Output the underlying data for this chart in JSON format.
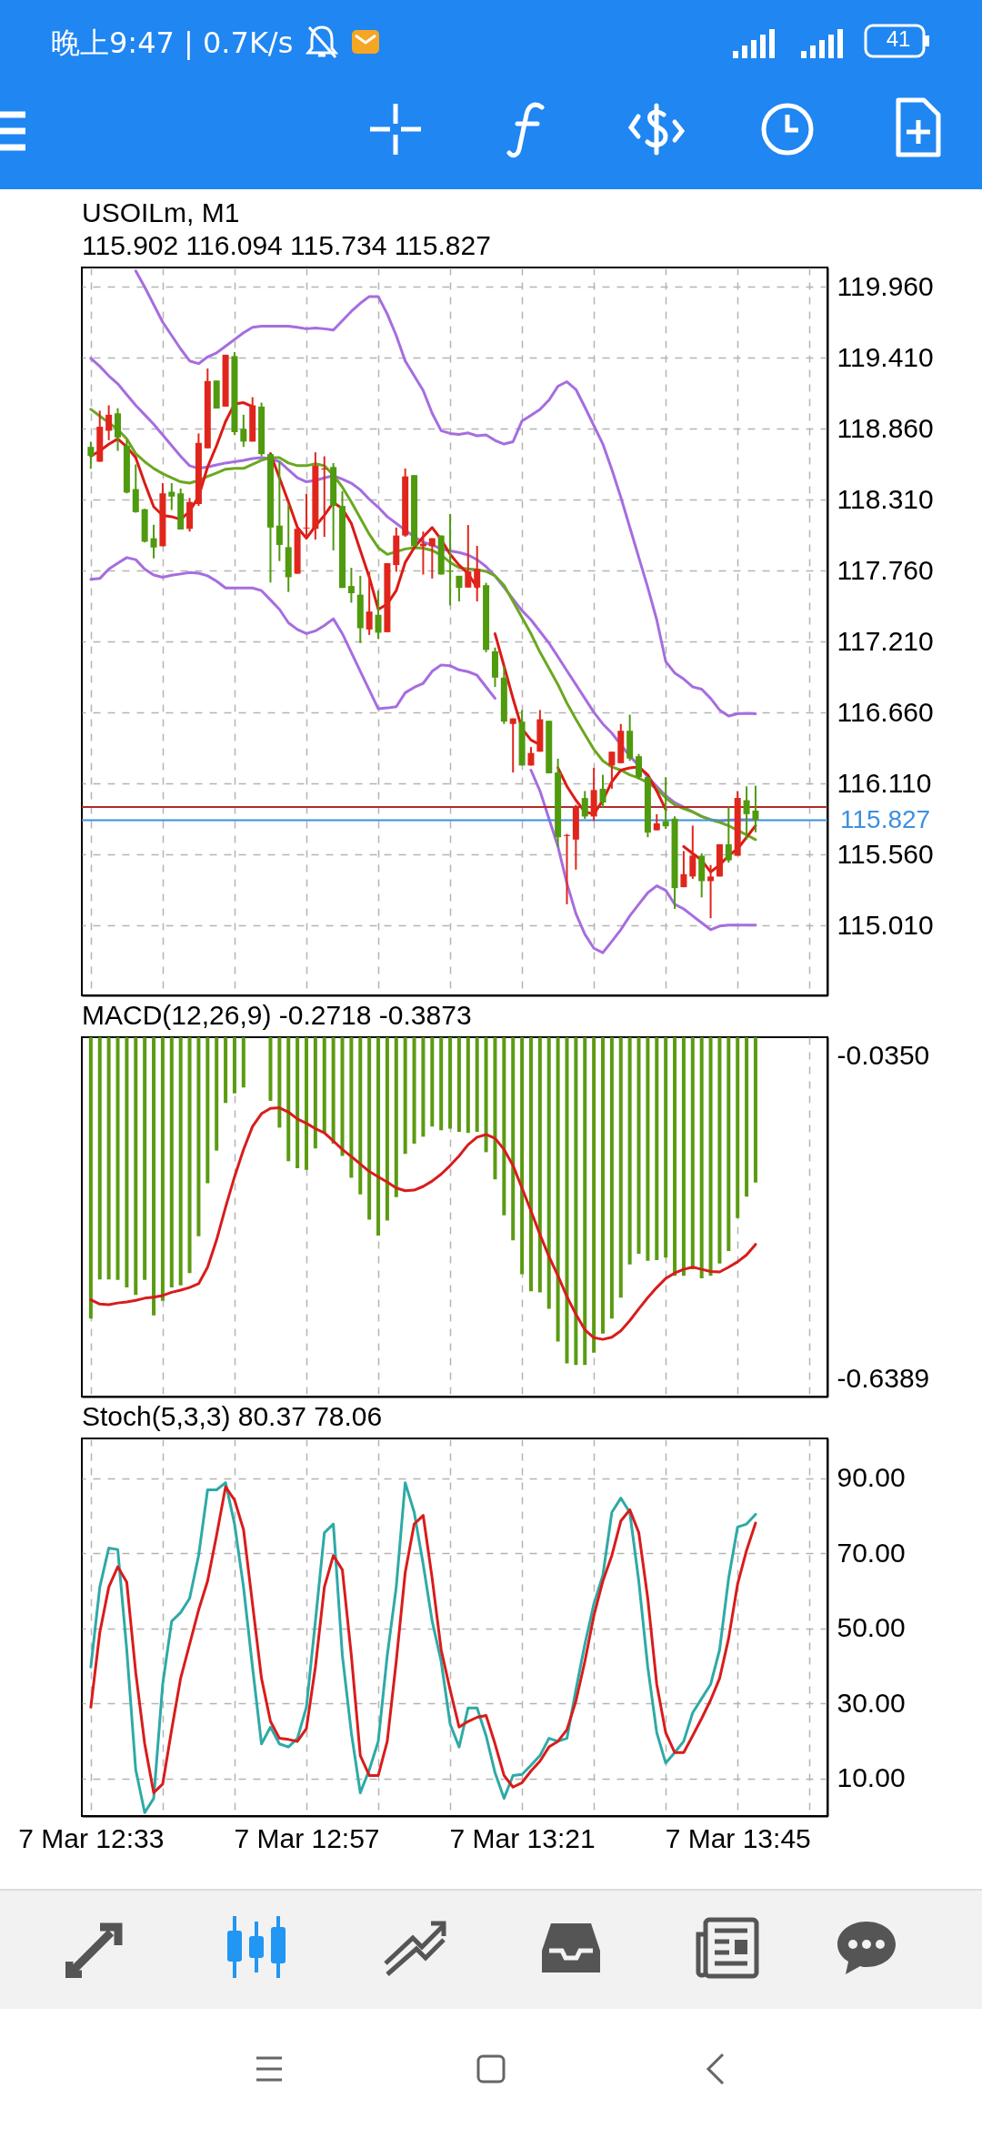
{
  "chart_data": [
    {
      "type": "candlestick",
      "title": "USOILm, M1",
      "subtitle": "115.902 116.094 115.734 115.827",
      "x": [
        "--03-07T12:33",
        "--03-07T12:34",
        "--03-07T12:35",
        "--03-07T12:36",
        "--03-07T12:37",
        "--03-07T12:38",
        "--03-07T12:39",
        "--03-07T12:40",
        "--03-07T12:41",
        "--03-07T12:42",
        "--03-07T12:43",
        "--03-07T12:44",
        "--03-07T12:45",
        "--03-07T12:46",
        "--03-07T12:47",
        "--03-07T12:48",
        "--03-07T12:49",
        "--03-07T12:50",
        "--03-07T12:51",
        "--03-07T12:52",
        "--03-07T12:53",
        "--03-07T12:54",
        "--03-07T12:55",
        "--03-07T12:56",
        "--03-07T12:57",
        "--03-07T12:58",
        "--03-07T12:59",
        "--03-07T13:00",
        "--03-07T13:01",
        "--03-07T13:02",
        "--03-07T13:03",
        "--03-07T13:04",
        "--03-07T13:05",
        "--03-07T13:06",
        "--03-07T13:07",
        "--03-07T13:08",
        "--03-07T13:09",
        "--03-07T13:10",
        "--03-07T13:11",
        "--03-07T13:12",
        "--03-07T13:13",
        "--03-07T13:14",
        "--03-07T13:15",
        "--03-07T13:16",
        "--03-07T13:17",
        "--03-07T13:18",
        "--03-07T13:19",
        "--03-07T13:20",
        "--03-07T13:21",
        "--03-07T13:22",
        "--03-07T13:23",
        "--03-07T13:24",
        "--03-07T13:25",
        "--03-07T13:26",
        "--03-07T13:27",
        "--03-07T13:28",
        "--03-07T13:29",
        "--03-07T13:30",
        "--03-07T13:31",
        "--03-07T13:32",
        "--03-07T13:33",
        "--03-07T13:34",
        "--03-07T13:35",
        "--03-07T13:36",
        "--03-07T13:37",
        "--03-07T13:38",
        "--03-07T13:39",
        "--03-07T13:40",
        "--03-07T13:41",
        "--03-07T13:42",
        "--03-07T13:43",
        "--03-07T13:44",
        "--03-07T13:45",
        "--03-07T13:46",
        "--03-07T13:47"
      ],
      "ohlc": [
        [
          118.72,
          118.76,
          118.55,
          118.65
        ],
        [
          118.605,
          119.0,
          118.605,
          118.876
        ],
        [
          118.845,
          119.042,
          118.772,
          118.969
        ],
        [
          118.98,
          119.02,
          118.689,
          118.793
        ],
        [
          118.73,
          118.772,
          118.36,
          118.366
        ],
        [
          118.393,
          118.584,
          118.21,
          118.214
        ],
        [
          118.237,
          118.24,
          117.98,
          117.985
        ],
        [
          118.012,
          118.116,
          117.856,
          117.94
        ],
        [
          117.95,
          118.439,
          117.95,
          118.36
        ],
        [
          118.372,
          118.439,
          118.231,
          118.335
        ],
        [
          118.36,
          118.397,
          118.08,
          118.08
        ],
        [
          118.085,
          118.324,
          118.064,
          118.293
        ],
        [
          118.277,
          118.824,
          118.262,
          118.751
        ],
        [
          118.709,
          119.327,
          118.709,
          119.23
        ],
        [
          119.234,
          119.234,
          119.017,
          119.017
        ],
        [
          119.032,
          119.434,
          119.032,
          119.434
        ],
        [
          119.423,
          119.454,
          118.813,
          118.834
        ],
        [
          118.859,
          118.969,
          118.72,
          118.761
        ],
        [
          118.761,
          119.105,
          118.761,
          119.042
        ],
        [
          119.032,
          119.063,
          118.647,
          118.664
        ],
        [
          118.664,
          118.664,
          117.669,
          118.095
        ],
        [
          118.11,
          118.605,
          117.835,
          117.96
        ],
        [
          117.943,
          118.273,
          117.596,
          117.71
        ],
        [
          117.737,
          118.095,
          117.737,
          118.085
        ],
        [
          118.088,
          118.356,
          118.012,
          118.095
        ],
        [
          118.085,
          118.678,
          118.002,
          118.574
        ],
        [
          118.545,
          118.647,
          118.023,
          118.553
        ],
        [
          118.564,
          118.595,
          117.918,
          118.262
        ],
        [
          118.262,
          118.376,
          117.627,
          117.627
        ],
        [
          117.642,
          117.783,
          117.513,
          117.586
        ],
        [
          117.575,
          117.721,
          117.2,
          117.315
        ],
        [
          117.305,
          117.752,
          117.263,
          117.444
        ],
        [
          117.419,
          117.606,
          117.232,
          117.28
        ],
        [
          117.284,
          117.819,
          117.284,
          117.819
        ],
        [
          117.804,
          118.095,
          117.752,
          118.033
        ],
        [
          118.033,
          118.553,
          118.023,
          118.491
        ],
        [
          118.501,
          118.501,
          117.95,
          117.95
        ],
        [
          117.95,
          118.064,
          117.731,
          117.97
        ],
        [
          117.95,
          118.012,
          117.7,
          118.012
        ],
        [
          118.033,
          118.033,
          117.731,
          117.731
        ],
        [
          117.762,
          118.2,
          117.492,
          117.752
        ],
        [
          117.721,
          117.721,
          117.523,
          117.627
        ],
        [
          117.63,
          118.114,
          117.63,
          117.756
        ],
        [
          117.63,
          117.953,
          117.523,
          117.774
        ],
        [
          117.648,
          117.666,
          117.129,
          117.147
        ],
        [
          117.136,
          117.165,
          116.86,
          116.932
        ],
        [
          116.932,
          117.021,
          116.573,
          116.591
        ],
        [
          116.573,
          116.616,
          116.197,
          116.616
        ],
        [
          116.591,
          116.681,
          116.251,
          116.251
        ],
        [
          116.251,
          116.394,
          116.251,
          116.348
        ],
        [
          116.358,
          116.681,
          116.358,
          116.609
        ],
        [
          116.598,
          116.598,
          116.19,
          116.19
        ],
        [
          116.197,
          116.304,
          115.623,
          115.695
        ],
        [
          115.705,
          115.72,
          115.176,
          115.713
        ],
        [
          115.677,
          115.946,
          115.444,
          115.928
        ],
        [
          115.999,
          116.053,
          115.838,
          115.856
        ],
        [
          115.856,
          116.233,
          115.821,
          116.061
        ],
        [
          116.071,
          116.179,
          115.928,
          115.964
        ],
        [
          116.251,
          116.358,
          116.071,
          116.358
        ],
        [
          116.269,
          116.573,
          116.269,
          116.52
        ],
        [
          116.52,
          116.645,
          116.287,
          116.305
        ],
        [
          116.323,
          116.341,
          116.143,
          116.161
        ],
        [
          116.161,
          116.161,
          115.695,
          115.731
        ],
        [
          115.749,
          115.874,
          115.749,
          115.803
        ],
        [
          115.82,
          116.16,
          115.76,
          115.78
        ],
        [
          115.839,
          115.857,
          115.14,
          115.301
        ],
        [
          115.308,
          115.588,
          115.308,
          115.409
        ],
        [
          115.391,
          115.785,
          115.373,
          115.552
        ],
        [
          115.552,
          115.57,
          115.229,
          115.355
        ],
        [
          115.355,
          115.48,
          115.068,
          115.391
        ],
        [
          115.391,
          115.641,
          115.391,
          115.641
        ],
        [
          115.641,
          115.928,
          115.498,
          115.516
        ],
        [
          115.552,
          116.053,
          115.552,
          116.0
        ],
        [
          115.982,
          116.089,
          115.677,
          115.874
        ],
        [
          115.902,
          116.094,
          115.734,
          115.827
        ]
      ],
      "colors": [
        "#4f9a0e",
        "#e0261c",
        "#e0261c",
        "#4f9a0e",
        "#4f9a0e",
        "#4f9a0e",
        "#4f9a0e",
        "#4f9a0e",
        "#e0261c",
        "#4f9a0e",
        "#4f9a0e",
        "#e0261c",
        "#e0261c",
        "#e0261c",
        "#4f9a0e",
        "#e0261c",
        "#4f9a0e",
        "#4f9a0e",
        "#e0261c",
        "#4f9a0e",
        "#4f9a0e",
        "#4f9a0e",
        "#4f9a0e",
        "#e0261c",
        "#e0261c",
        "#e0261c",
        "#e0261c",
        "#4f9a0e",
        "#4f9a0e",
        "#4f9a0e",
        "#4f9a0e",
        "#e0261c",
        "#4f9a0e",
        "#e0261c",
        "#e0261c",
        "#e0261c",
        "#4f9a0e",
        "#e0261c",
        "#e0261c",
        "#4f9a0e",
        "#4f9a0e",
        "#4f9a0e",
        "#e0261c",
        "#e0261c",
        "#4f9a0e",
        "#4f9a0e",
        "#4f9a0e",
        "#e0261c",
        "#4f9a0e",
        "#e0261c",
        "#e0261c",
        "#4f9a0e",
        "#4f9a0e",
        "#e0261c",
        "#e0261c",
        "#4f9a0e",
        "#e0261c",
        "#4f9a0e",
        "#e0261c",
        "#e0261c",
        "#4f9a0e",
        "#4f9a0e",
        "#4f9a0e",
        "#e0261c",
        "#4f9a0e",
        "#4f9a0e",
        "#e0261c",
        "#e0261c",
        "#4f9a0e",
        "#e0261c",
        "#e0261c",
        "#4f9a0e",
        "#e0261c",
        "#4f9a0e",
        "#4f9a0e"
      ],
      "series": [
        {
          "type": "line",
          "color": "#a66ddf",
          "values": [
            null,
            null,
            null,
            null,
            null,
            120.083,
            119.958,
            119.823,
            119.687,
            119.583,
            119.479,
            119.386,
            119.365,
            119.417,
            119.448,
            119.5,
            119.552,
            119.604,
            119.646,
            119.656,
            119.656,
            119.656,
            119.656,
            119.646,
            119.635,
            119.642,
            119.635,
            119.625,
            119.698,
            119.77,
            119.833,
            119.885,
            119.885,
            119.75,
            119.583,
            119.386,
            119.271,
            119.157,
            118.98,
            118.845,
            118.824,
            118.817,
            118.828,
            118.806,
            118.813,
            118.77,
            118.742,
            118.76,
            118.921,
            118.964,
            119.01,
            119.082,
            119.19,
            119.225,
            119.165,
            119.028,
            118.885,
            118.742,
            118.545,
            118.33,
            118.097,
            117.864,
            117.631,
            117.38,
            117.057,
            116.968,
            116.921,
            116.86,
            116.842,
            116.771,
            116.681,
            116.634,
            116.652,
            116.656,
            116.652
          ]
        },
        {
          "type": "line",
          "color": "#a66ddf",
          "values": [
            119.406,
            119.344,
            119.271,
            119.209,
            119.125,
            119.042,
            118.969,
            118.896,
            118.813,
            118.73,
            118.647,
            118.574,
            118.553,
            118.564,
            118.58,
            118.595,
            118.605,
            118.616,
            118.63,
            118.636,
            118.63,
            118.605,
            118.543,
            118.48,
            118.449,
            118.46,
            118.48,
            118.497,
            118.47,
            118.439,
            118.387,
            118.314,
            118.252,
            118.179,
            118.127,
            118.075,
            118.023,
            117.981,
            117.96,
            117.929,
            117.914,
            117.902,
            117.882,
            117.846,
            117.792,
            117.72,
            117.631,
            117.541,
            117.451,
            117.38,
            117.29,
            117.2,
            117.093,
            116.985,
            116.878,
            116.771,
            116.663,
            116.573,
            116.502,
            116.412,
            116.323,
            116.251,
            116.161,
            116.09,
            116.018,
            115.964,
            115.928,
            115.892,
            115.856,
            115.831,
            115.82,
            115.828,
            115.831,
            115.831,
            115.831
          ]
        },
        {
          "type": "line",
          "color": "#a66ddf",
          "values": [
            117.694,
            117.7,
            117.773,
            117.818,
            117.862,
            117.846,
            117.773,
            117.727,
            117.71,
            117.725,
            117.735,
            117.746,
            117.741,
            117.721,
            117.679,
            117.627,
            117.627,
            117.627,
            117.627,
            117.606,
            117.534,
            117.461,
            117.357,
            117.305,
            117.273,
            117.294,
            117.336,
            117.388,
            117.273,
            117.127,
            116.981,
            116.836,
            116.69,
            116.697,
            116.707,
            116.815,
            116.857,
            116.888,
            116.981,
            117.03,
            117.024,
            116.992,
            116.978,
            116.95,
            116.86,
            116.771,
            null,
            null,
            null,
            116.215,
            116.054,
            115.839,
            115.624,
            115.337,
            115.104,
            114.943,
            114.835,
            114.8,
            114.889,
            114.979,
            115.086,
            115.176,
            115.265,
            115.319,
            115.283,
            115.176,
            115.14,
            115.086,
            115.032,
            114.979,
            115.007,
            115.014,
            115.014,
            115.014,
            115.014
          ]
        },
        {
          "type": "line",
          "color": "#6aa821",
          "values": [
            119.011,
            118.959,
            118.907,
            118.855,
            118.782,
            118.668,
            118.605,
            118.553,
            118.512,
            118.48,
            118.449,
            118.439,
            118.46,
            118.491,
            118.518,
            118.547,
            118.553,
            118.553,
            118.584,
            118.616,
            118.636,
            118.636,
            118.595,
            118.574,
            118.574,
            118.589,
            118.574,
            118.501,
            118.408,
            118.293,
            118.168,
            118.043,
            117.939,
            117.887,
            117.908,
            117.929,
            117.939,
            117.935,
            117.918,
            117.881,
            117.825,
            117.783,
            117.774,
            117.767,
            117.756,
            117.72,
            117.648,
            117.523,
            117.398,
            117.272,
            117.129,
            117.004,
            116.878,
            116.735,
            116.609,
            116.491,
            116.376,
            116.287,
            116.24,
            116.215,
            116.179,
            116.154,
            116.118,
            116.071,
            116.0,
            115.946,
            115.917,
            115.892,
            115.856,
            115.831,
            115.81,
            115.785,
            115.749,
            115.713,
            115.677
          ]
        },
        {
          "type": "line",
          "color": "#dd1a14",
          "values": [
            118.647,
            118.689,
            118.74,
            118.782,
            118.72,
            118.636,
            118.439,
            118.256,
            118.189,
            118.179,
            118.158,
            118.22,
            118.335,
            118.564,
            118.73,
            118.917,
            119.053,
            119.063,
            119.032,
            null,
            118.668,
            118.48,
            118.293,
            118.095,
            118.012,
            118.106,
            118.189,
            118.289,
            118.241,
            118.127,
            117.918,
            117.71,
            117.461,
            117.502,
            117.606,
            117.825,
            117.939,
            118.023,
            118.095,
            118.002,
            117.887,
            117.804,
            117.738,
            117.631,
            null,
            117.272,
            117.022,
            116.77,
            116.537,
            116.448,
            116.412,
            null,
            116.233,
            116.09,
            115.982,
            115.892,
            115.874,
            115.982,
            116.125,
            116.215,
            116.233,
            116.24,
            116.179,
            116.053,
            115.91,
            null,
            115.623,
            115.57,
            115.516,
            115.426,
            115.48,
            115.552,
            115.605,
            115.695,
            115.785
          ]
        }
      ],
      "xlim": [
        "--03-07T12:32",
        "--03-07T13:55"
      ],
      "xticks": [
        {
          "value": "--03-07T12:33",
          "label": "7 Mar 12:33"
        },
        {
          "value": "--03-07T12:41",
          "label": null
        },
        {
          "value": "--03-07T12:49",
          "label": null
        },
        {
          "value": "--03-07T12:57",
          "label": "7 Mar 12:57"
        },
        {
          "value": "--03-07T13:05",
          "label": null
        },
        {
          "value": "--03-07T13:13",
          "label": null
        },
        {
          "value": "--03-07T13:21",
          "label": "7 Mar 13:21"
        },
        {
          "value": "--03-07T13:29",
          "label": null
        },
        {
          "value": "--03-07T13:37",
          "label": null
        },
        {
          "value": "--03-07T13:45",
          "label": "7 Mar 13:45"
        },
        {
          "value": "--03-07T13:53",
          "label": null
        }
      ],
      "ylim": [
        114.47,
        120.11
      ],
      "yticks": [
        {
          "value": 119.96,
          "label": "119.960"
        },
        {
          "value": 119.41,
          "label": "119.410"
        },
        {
          "value": 118.86,
          "label": "118.860"
        },
        {
          "value": 118.31,
          "label": "118.310"
        },
        {
          "value": 117.76,
          "label": "117.760"
        },
        {
          "value": 117.21,
          "label": "117.210"
        },
        {
          "value": 116.66,
          "label": "116.660"
        },
        {
          "value": 116.11,
          "label": "116.110"
        },
        {
          "value": 115.56,
          "label": "115.560"
        },
        {
          "value": 115.01,
          "label": "115.010"
        }
      ],
      "grid": true,
      "tick_labels": "y",
      "ref_lines": [
        {
          "axis": "y",
          "value": 115.93,
          "color": "#b22a2a"
        },
        {
          "axis": "y",
          "value": 115.827,
          "label": "115.827",
          "color": "#3d8fe0"
        }
      ],
      "annotations": [
        "晚上9:47 | 0.7K/s",
        "41"
      ]
    },
    {
      "type": "bar",
      "title": "MACD(12,26,9) -0.2718 -0.3873",
      "x": [
        "--03-07T12:33",
        "--03-07T12:34",
        "--03-07T12:35",
        "--03-07T12:36",
        "--03-07T12:37",
        "--03-07T12:38",
        "--03-07T12:39",
        "--03-07T12:40",
        "--03-07T12:41",
        "--03-07T12:42",
        "--03-07T12:43",
        "--03-07T12:44",
        "--03-07T12:45",
        "--03-07T12:46",
        "--03-07T12:47",
        "--03-07T12:48",
        "--03-07T12:49",
        "--03-07T12:50",
        "--03-07T12:51",
        "--03-07T12:52",
        "--03-07T12:53",
        "--03-07T12:54",
        "--03-07T12:55",
        "--03-07T12:56",
        "--03-07T12:57",
        "--03-07T12:58",
        "--03-07T12:59",
        "--03-07T13:00",
        "--03-07T13:01",
        "--03-07T13:02",
        "--03-07T13:03",
        "--03-07T13:04",
        "--03-07T13:05",
        "--03-07T13:06",
        "--03-07T13:07",
        "--03-07T13:08",
        "--03-07T13:09",
        "--03-07T13:10",
        "--03-07T13:11",
        "--03-07T13:12",
        "--03-07T13:13",
        "--03-07T13:14",
        "--03-07T13:15",
        "--03-07T13:16",
        "--03-07T13:17",
        "--03-07T13:18",
        "--03-07T13:19",
        "--03-07T13:20",
        "--03-07T13:21",
        "--03-07T13:22",
        "--03-07T13:23",
        "--03-07T13:24",
        "--03-07T13:25",
        "--03-07T13:26",
        "--03-07T13:27",
        "--03-07T13:28",
        "--03-07T13:29",
        "--03-07T13:30",
        "--03-07T13:31",
        "--03-07T13:32",
        "--03-07T13:33",
        "--03-07T13:34",
        "--03-07T13:35",
        "--03-07T13:36",
        "--03-07T13:37",
        "--03-07T13:38",
        "--03-07T13:39",
        "--03-07T13:40",
        "--03-07T13:41",
        "--03-07T13:42",
        "--03-07T13:43",
        "--03-07T13:44",
        "--03-07T13:45",
        "--03-07T13:46",
        "--03-07T13:47"
      ],
      "series": [
        {
          "color": "#5b9b12",
          "values": [
            -0.526,
            -0.453,
            -0.453,
            -0.454,
            -0.468,
            -0.482,
            -0.454,
            -0.52,
            -0.493,
            -0.468,
            -0.464,
            -0.441,
            -0.372,
            -0.273,
            -0.212,
            -0.123,
            -0.105,
            -0.094,
            null,
            null,
            -0.119,
            -0.169,
            -0.232,
            -0.245,
            -0.248,
            -0.208,
            -0.179,
            -0.199,
            -0.222,
            -0.263,
            -0.294,
            -0.341,
            -0.371,
            -0.343,
            -0.299,
            -0.218,
            -0.199,
            -0.186,
            -0.167,
            -0.174,
            -0.171,
            -0.177,
            -0.179,
            -0.177,
            -0.215,
            -0.266,
            -0.333,
            -0.38,
            -0.443,
            -0.475,
            -0.477,
            -0.508,
            -0.569,
            -0.61,
            -0.613,
            -0.613,
            -0.59,
            -0.554,
            -0.526,
            -0.487,
            -0.425,
            -0.405,
            -0.418,
            -0.417,
            -0.412,
            -0.446,
            -0.446,
            -0.434,
            -0.451,
            -0.446,
            -0.423,
            -0.4,
            -0.338,
            -0.298,
            -0.2718
          ]
        },
        {
          "type": "line",
          "color": "#d91c1c",
          "values": [
            -0.491,
            -0.499,
            -0.5,
            -0.497,
            -0.495,
            -0.492,
            -0.488,
            -0.486,
            -0.483,
            -0.477,
            -0.473,
            -0.468,
            -0.461,
            -0.43,
            -0.379,
            -0.318,
            -0.261,
            -0.21,
            -0.167,
            -0.143,
            -0.133,
            -0.132,
            -0.14,
            -0.153,
            -0.161,
            -0.171,
            -0.179,
            -0.194,
            -0.21,
            -0.223,
            -0.237,
            -0.251,
            -0.261,
            -0.271,
            -0.282,
            -0.287,
            -0.286,
            -0.279,
            -0.269,
            -0.256,
            -0.24,
            -0.222,
            -0.201,
            -0.187,
            -0.182,
            -0.189,
            -0.21,
            -0.24,
            -0.282,
            -0.325,
            -0.369,
            -0.41,
            -0.446,
            -0.485,
            -0.518,
            -0.547,
            -0.562,
            -0.565,
            -0.561,
            -0.549,
            -0.53,
            -0.508,
            -0.487,
            -0.468,
            -0.451,
            -0.441,
            -0.434,
            -0.43,
            -0.434,
            -0.438,
            -0.439,
            -0.43,
            -0.42,
            -0.407,
            -0.3873
          ]
        }
      ],
      "xlim": [
        "--03-07T12:32",
        "--03-07T13:55"
      ],
      "xticks": [
        {
          "value": "--03-07T12:33",
          "label": "7 Mar 12:33"
        },
        {
          "value": "--03-07T12:41",
          "label": null
        },
        {
          "value": "--03-07T12:49",
          "label": null
        },
        {
          "value": "--03-07T12:57",
          "label": "7 Mar 12:57"
        },
        {
          "value": "--03-07T13:05",
          "label": null
        },
        {
          "value": "--03-07T13:13",
          "label": null
        },
        {
          "value": "--03-07T13:21",
          "label": "7 Mar 13:21"
        },
        {
          "value": "--03-07T13:29",
          "label": null
        },
        {
          "value": "--03-07T13:37",
          "label": null
        },
        {
          "value": "--03-07T13:45",
          "label": "7 Mar 13:45"
        },
        {
          "value": "--03-07T13:53",
          "label": null
        }
      ],
      "ylim": [
        -0.672,
        0
      ],
      "yticks": [
        {
          "value": -0.035,
          "label": "-0.0350"
        },
        {
          "value": -0.6389,
          "label": "-0.6389"
        }
      ],
      "grid": "x",
      "tick_labels": "y"
    },
    {
      "type": "line",
      "title": "Stoch(5,3,3) 80.37 78.06",
      "x": [
        "--03-07T12:33",
        "--03-07T12:34",
        "--03-07T12:35",
        "--03-07T12:36",
        "--03-07T12:37",
        "--03-07T12:38",
        "--03-07T12:39",
        "--03-07T12:40",
        "--03-07T12:41",
        "--03-07T12:42",
        "--03-07T12:43",
        "--03-07T12:44",
        "--03-07T12:45",
        "--03-07T12:46",
        "--03-07T12:47",
        "--03-07T12:48",
        "--03-07T12:49",
        "--03-07T12:50",
        "--03-07T12:51",
        "--03-07T12:52",
        "--03-07T12:53",
        "--03-07T12:54",
        "--03-07T12:55",
        "--03-07T12:56",
        "--03-07T12:57",
        "--03-07T12:58",
        "--03-07T12:59",
        "--03-07T13:00",
        "--03-07T13:01",
        "--03-07T13:02",
        "--03-07T13:03",
        "--03-07T13:04",
        "--03-07T13:05",
        "--03-07T13:06",
        "--03-07T13:07",
        "--03-07T13:08",
        "--03-07T13:09",
        "--03-07T13:10",
        "--03-07T13:11",
        "--03-07T13:12",
        "--03-07T13:13",
        "--03-07T13:14",
        "--03-07T13:15",
        "--03-07T13:16",
        "--03-07T13:17",
        "--03-07T13:18",
        "--03-07T13:19",
        "--03-07T13:20",
        "--03-07T13:21",
        "--03-07T13:22",
        "--03-07T13:23",
        "--03-07T13:24",
        "--03-07T13:25",
        "--03-07T13:26",
        "--03-07T13:27",
        "--03-07T13:28",
        "--03-07T13:29",
        "--03-07T13:30",
        "--03-07T13:31",
        "--03-07T13:32",
        "--03-07T13:33",
        "--03-07T13:34",
        "--03-07T13:35",
        "--03-07T13:36",
        "--03-07T13:37",
        "--03-07T13:38",
        "--03-07T13:39",
        "--03-07T13:40",
        "--03-07T13:41",
        "--03-07T13:42",
        "--03-07T13:43",
        "--03-07T13:44",
        "--03-07T13:45",
        "--03-07T13:46",
        "--03-07T13:47"
      ],
      "series": [
        {
          "color": "#2eaaa6",
          "values": [
            39.7,
            61.0,
            71.4,
            71.0,
            44.3,
            12.3,
            0.9,
            4.7,
            35.1,
            51.9,
            54.2,
            58.0,
            69.4,
            86.9,
            86.9,
            88.8,
            77.8,
            61.0,
            39.7,
            19.2,
            23.7,
            19.2,
            18.4,
            20.7,
            29.0,
            51.9,
            75.5,
            77.8,
            42.8,
            22.2,
            6.2,
            12.3,
            19.9,
            42.8,
            61.0,
            88.8,
            80.9,
            67.1,
            51.9,
            41.2,
            24.5,
            18.4,
            28.8,
            28.8,
            21.4,
            11.5,
            4.7,
            10.8,
            11.1,
            13.5,
            16.1,
            20.7,
            19.9,
            20.7,
            33.6,
            45.8,
            56.5,
            64.1,
            80.9,
            84.7,
            80.9,
            62.6,
            39.7,
            22.2,
            14.1,
            16.9,
            19.9,
            27.5,
            31.3,
            35.1,
            44.3,
            63.3,
            77.0,
            77.8,
            80.37
          ]
        },
        {
          "color": "#d91c1c",
          "values": [
            29.0,
            48.9,
            61.0,
            66.4,
            62.3,
            38.2,
            19.2,
            6.2,
            8.5,
            23.0,
            36.7,
            45.8,
            54.9,
            62.6,
            74.8,
            87.7,
            84.2,
            76.3,
            56.5,
            36.7,
            25.2,
            20.7,
            20.4,
            19.9,
            23.3,
            39.7,
            61.0,
            69.4,
            65.6,
            42.8,
            16.1,
            10.8,
            10.8,
            19.9,
            41.2,
            64.9,
            77.8,
            80.1,
            63.3,
            44.3,
            33.6,
            23.7,
            25.2,
            26.3,
            26.8,
            19.2,
            10.8,
            7.7,
            8.9,
            12.0,
            14.6,
            18.4,
            19.9,
            23.0,
            30.6,
            41.2,
            53.4,
            62.6,
            69.4,
            78.6,
            81.6,
            75.5,
            58.0,
            35.1,
            22.2,
            16.9,
            16.9,
            21.4,
            26.0,
            30.9,
            36.7,
            47.3,
            61.8,
            70.8,
            78.06
          ]
        }
      ],
      "xlim": [
        "--03-07T12:32",
        "--03-07T13:55"
      ],
      "xticks": [
        {
          "value": "--03-07T12:33",
          "label": "7 Mar 12:33"
        },
        {
          "value": "--03-07T12:41",
          "label": null
        },
        {
          "value": "--03-07T12:49",
          "label": null
        },
        {
          "value": "--03-07T12:57",
          "label": "7 Mar 12:57"
        },
        {
          "value": "--03-07T13:05",
          "label": null
        },
        {
          "value": "--03-07T13:13",
          "label": null
        },
        {
          "value": "--03-07T13:21",
          "label": "7 Mar 13:21"
        },
        {
          "value": "--03-07T13:29",
          "label": null
        },
        {
          "value": "--03-07T13:37",
          "label": null
        },
        {
          "value": "--03-07T13:45",
          "label": "7 Mar 13:45"
        },
        {
          "value": "--03-07T13:53",
          "label": null
        }
      ],
      "ylim": [
        0,
        100.6
      ],
      "yticks": [
        {
          "value": 90,
          "label": "90.00"
        },
        {
          "value": 70,
          "label": "70.00"
        },
        {
          "value": 50,
          "label": "50.00"
        },
        {
          "value": 30,
          "label": "30.00"
        },
        {
          "value": 10,
          "label": "10.00"
        }
      ],
      "grid": true
    }
  ]
}
